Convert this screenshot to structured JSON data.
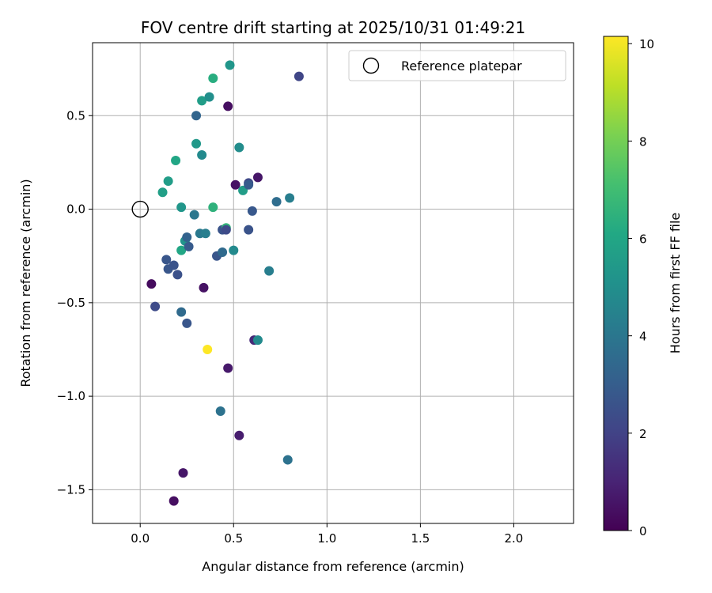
{
  "chart_data": {
    "type": "scatter",
    "title": "FOV centre drift starting at 2025/10/31 01:49:21",
    "xlabel": "Angular distance from reference (arcmin)",
    "ylabel": "Rotation from reference (arcmin)",
    "xlim": [
      -0.255,
      2.32
    ],
    "ylim": [
      -1.68,
      0.89
    ],
    "xticks": [
      0.0,
      0.5,
      1.0,
      1.5,
      2.0
    ],
    "xtick_labels": [
      "0.0",
      "0.5",
      "1.0",
      "1.5",
      "2.0"
    ],
    "yticks": [
      0.5,
      0.0,
      -0.5,
      -1.0,
      -1.5
    ],
    "ytick_labels": [
      "0.5",
      "0.0",
      "−0.5",
      "−1.0",
      "−1.5"
    ],
    "grid": true,
    "legend": {
      "position": "top-right",
      "label": "Reference platepar"
    },
    "reference_point": {
      "x": 0.0,
      "y": 0.0
    },
    "colorbar": {
      "label": "Hours from first FF file",
      "min": 0,
      "max": 10.15,
      "ticks": [
        0,
        2,
        4,
        6,
        8,
        10
      ],
      "tick_labels": [
        "0",
        "2",
        "4",
        "6",
        "8",
        "10"
      ],
      "colormap": "viridis"
    },
    "points": [
      {
        "x": 0.06,
        "y": -0.4,
        "c": 0.3
      },
      {
        "x": 0.08,
        "y": -0.52,
        "c": 2.3
      },
      {
        "x": 0.12,
        "y": 0.09,
        "c": 5.7
      },
      {
        "x": 0.14,
        "y": -0.27,
        "c": 2.7
      },
      {
        "x": 0.15,
        "y": 0.15,
        "c": 5.6
      },
      {
        "x": 0.15,
        "y": -0.32,
        "c": 2.7
      },
      {
        "x": 0.18,
        "y": -0.3,
        "c": 2.6
      },
      {
        "x": 0.18,
        "y": -1.56,
        "c": 0.4
      },
      {
        "x": 0.19,
        "y": 0.26,
        "c": 6.0
      },
      {
        "x": 0.2,
        "y": -0.35,
        "c": 2.5
      },
      {
        "x": 0.22,
        "y": -0.55,
        "c": 3.5
      },
      {
        "x": 0.22,
        "y": 0.01,
        "c": 5.3
      },
      {
        "x": 0.22,
        "y": -0.22,
        "c": 6.0
      },
      {
        "x": 0.23,
        "y": -1.41,
        "c": 0.6
      },
      {
        "x": 0.24,
        "y": -0.17,
        "c": 5.2
      },
      {
        "x": 0.25,
        "y": -0.15,
        "c": 3.2
      },
      {
        "x": 0.25,
        "y": -0.61,
        "c": 2.7
      },
      {
        "x": 0.26,
        "y": -0.2,
        "c": 2.9
      },
      {
        "x": 0.29,
        "y": -0.03,
        "c": 4.0
      },
      {
        "x": 0.3,
        "y": 0.5,
        "c": 3.3
      },
      {
        "x": 0.3,
        "y": 0.35,
        "c": 5.4
      },
      {
        "x": 0.32,
        "y": -0.13,
        "c": 4.1
      },
      {
        "x": 0.33,
        "y": 0.58,
        "c": 5.6
      },
      {
        "x": 0.33,
        "y": 0.29,
        "c": 4.8
      },
      {
        "x": 0.34,
        "y": -0.42,
        "c": 0.5
      },
      {
        "x": 0.35,
        "y": -0.13,
        "c": 4.3
      },
      {
        "x": 0.36,
        "y": -0.75,
        "c": 10.15
      },
      {
        "x": 0.37,
        "y": 0.6,
        "c": 5.0
      },
      {
        "x": 0.39,
        "y": 0.7,
        "c": 6.3
      },
      {
        "x": 0.39,
        "y": 0.01,
        "c": 6.5
      },
      {
        "x": 0.41,
        "y": -0.25,
        "c": 2.7
      },
      {
        "x": 0.43,
        "y": -1.08,
        "c": 3.8
      },
      {
        "x": 0.44,
        "y": -0.23,
        "c": 3.5
      },
      {
        "x": 0.44,
        "y": -0.11,
        "c": 2.6
      },
      {
        "x": 0.46,
        "y": -0.1,
        "c": 6.6
      },
      {
        "x": 0.46,
        "y": -0.11,
        "c": 2.3
      },
      {
        "x": 0.47,
        "y": 0.55,
        "c": 0.4
      },
      {
        "x": 0.47,
        "y": -0.85,
        "c": 0.7
      },
      {
        "x": 0.48,
        "y": 0.77,
        "c": 5.3
      },
      {
        "x": 0.5,
        "y": -0.22,
        "c": 4.8
      },
      {
        "x": 0.51,
        "y": 0.13,
        "c": 0.5
      },
      {
        "x": 0.53,
        "y": 0.33,
        "c": 4.9
      },
      {
        "x": 0.53,
        "y": -1.21,
        "c": 0.8
      },
      {
        "x": 0.55,
        "y": 0.1,
        "c": 5.6
      },
      {
        "x": 0.58,
        "y": 0.14,
        "c": 2.2
      },
      {
        "x": 0.58,
        "y": 0.13,
        "c": 2.9
      },
      {
        "x": 0.58,
        "y": -0.11,
        "c": 2.6
      },
      {
        "x": 0.6,
        "y": -0.01,
        "c": 2.8
      },
      {
        "x": 0.61,
        "y": -0.7,
        "c": 1.2
      },
      {
        "x": 0.63,
        "y": 0.17,
        "c": 0.6
      },
      {
        "x": 0.63,
        "y": -0.7,
        "c": 4.8
      },
      {
        "x": 0.69,
        "y": -0.33,
        "c": 4.3
      },
      {
        "x": 0.73,
        "y": 0.04,
        "c": 3.6
      },
      {
        "x": 0.79,
        "y": -1.34,
        "c": 3.8
      },
      {
        "x": 0.8,
        "y": 0.06,
        "c": 4.3
      },
      {
        "x": 0.85,
        "y": 0.71,
        "c": 2.1
      }
    ]
  }
}
